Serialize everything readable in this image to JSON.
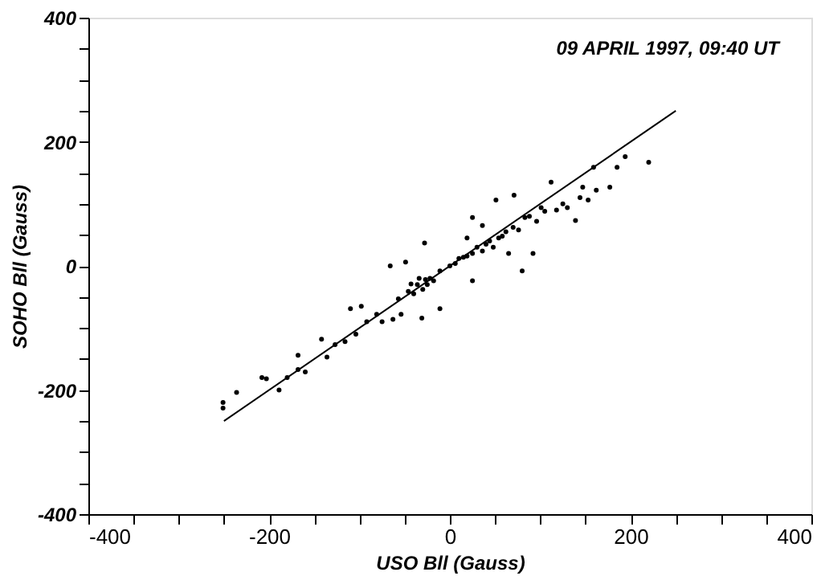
{
  "chart_data": {
    "type": "scatter",
    "xlabel": "USO Bll (Gauss)",
    "ylabel": "SOHO Bll (Gauss)",
    "annotations": [
      "09 APRIL 1997, 09:40 UT"
    ],
    "xlim": [
      -400,
      400
    ],
    "ylim": [
      -400,
      400
    ],
    "xticks": [
      -400,
      {
        "value": -350,
        "label": null
      },
      {
        "value": -300,
        "label": null
      },
      {
        "value": -250,
        "label": null
      },
      -200,
      {
        "value": -150,
        "label": null
      },
      {
        "value": -100,
        "label": null
      },
      {
        "value": -50,
        "label": null
      },
      0,
      {
        "value": 50,
        "label": null
      },
      {
        "value": 100,
        "label": null
      },
      {
        "value": 150,
        "label": null
      },
      200,
      {
        "value": 250,
        "label": null
      },
      {
        "value": 300,
        "label": null
      },
      {
        "value": 350,
        "label": null
      },
      400
    ],
    "yticks": [
      -400,
      {
        "value": -350,
        "label": null
      },
      {
        "value": -300,
        "label": null
      },
      {
        "value": -250,
        "label": null
      },
      -200,
      {
        "value": -150,
        "label": null
      },
      {
        "value": -100,
        "label": null
      },
      {
        "value": -50,
        "label": null
      },
      0,
      {
        "value": 50,
        "label": null
      },
      {
        "value": 100,
        "label": null
      },
      {
        "value": 150,
        "label": null
      },
      200,
      {
        "value": 250,
        "label": null
      },
      {
        "value": 300,
        "label": null
      },
      {
        "value": 350,
        "label": null
      },
      400
    ],
    "grid": false,
    "series": [
      {
        "type": "scatter",
        "color": "#000000",
        "marker": "circle",
        "x": [
          -251,
          -251,
          -236,
          -208,
          -203,
          -189,
          -180,
          -168,
          -168,
          -160,
          -142,
          -136,
          -127,
          -116,
          -110,
          -104,
          -92,
          -98,
          -81,
          -75,
          -66,
          -63,
          -57,
          -49,
          -46,
          -43,
          -31,
          -34,
          -22,
          -11,
          0,
          10,
          19,
          25,
          -28,
          -11,
          25,
          36,
          51,
          54,
          65,
          71,
          83,
          92,
          101,
          80,
          112,
          118,
          130,
          139,
          147,
          162,
          177,
          185,
          194,
          220,
          144,
          153,
          159,
          25,
          36,
          19,
          -54,
          -40,
          -36,
          -30,
          -27,
          -25,
          -18,
          6,
          15,
          30,
          40,
          44,
          48,
          58,
          62,
          70,
          76,
          88,
          96,
          105,
          125
        ],
        "values": [
          -220,
          -229,
          -204,
          -180,
          -182,
          -200,
          -180,
          -167,
          -144,
          -171,
          -118,
          -147,
          -127,
          -122,
          -69,
          -110,
          -90,
          -65,
          -78,
          -90,
          0,
          -86,
          -53,
          6,
          -41,
          -29,
          -84,
          -20,
          -20,
          -8,
          0,
          12,
          16,
          20,
          37,
          -69,
          -24,
          24,
          106,
          45,
          20,
          114,
          78,
          20,
          94,
          -8,
          135,
          90,
          94,
          73,
          127,
          122,
          127,
          159,
          176,
          167,
          110,
          106,
          159,
          78,
          65,
          45,
          -78,
          -45,
          -30,
          -38,
          -22,
          -30,
          -24,
          4,
          14,
          30,
          35,
          40,
          30,
          48,
          55,
          62,
          58,
          80,
          72,
          88,
          100
        ]
      },
      {
        "type": "line",
        "color": "#000000",
        "line_style": "solid",
        "marker": "none",
        "x": [
          -250,
          250
        ],
        "values": [
          -250,
          250
        ]
      }
    ]
  }
}
